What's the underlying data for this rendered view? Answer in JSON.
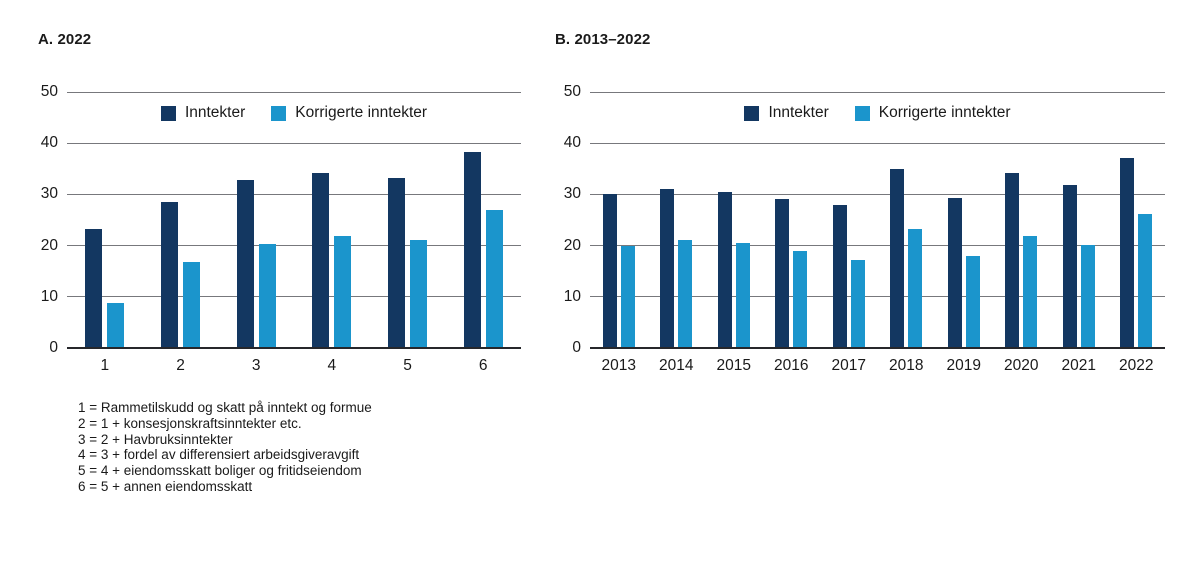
{
  "colors": {
    "inntekter": "#133761",
    "korrigerte_inntekter": "#1b95cc",
    "gridline": "#77787c",
    "baseline": "#26272b",
    "text": "#1a1a1a"
  },
  "chart_data": [
    {
      "type": "bar",
      "title": "A. 2022",
      "categories": [
        "1",
        "2",
        "3",
        "4",
        "5",
        "6"
      ],
      "series": [
        {
          "name": "Inntekter",
          "color_key": "inntekter",
          "values": [
            23.3,
            28.5,
            32.8,
            34.2,
            33.2,
            38.3
          ]
        },
        {
          "name": "Korrigerte inntekter",
          "color_key": "korrigerte_inntekter",
          "values": [
            8.7,
            16.8,
            20.4,
            21.8,
            21.0,
            27.0
          ]
        }
      ],
      "ylim": [
        0,
        50
      ],
      "yticks": [
        0,
        10,
        20,
        30,
        40,
        50
      ],
      "grid": true,
      "legend_position": "top-center-inside",
      "legend": [
        "Inntekter",
        "Korrigerte inntekter"
      ]
    },
    {
      "type": "bar",
      "title": "B. 2013–2022",
      "categories": [
        "2013",
        "2014",
        "2015",
        "2016",
        "2017",
        "2018",
        "2019",
        "2020",
        "2021",
        "2022"
      ],
      "series": [
        {
          "name": "Inntekter",
          "color_key": "inntekter",
          "values": [
            30.0,
            31.0,
            30.5,
            29.2,
            27.9,
            35.0,
            29.3,
            34.2,
            31.9,
            37.2
          ]
        },
        {
          "name": "Korrigerte inntekter",
          "color_key": "korrigerte_inntekter",
          "values": [
            20.0,
            21.0,
            20.5,
            19.0,
            17.1,
            23.3,
            17.9,
            21.9,
            20.2,
            26.2
          ]
        }
      ],
      "ylim": [
        0,
        50
      ],
      "yticks": [
        0,
        10,
        20,
        30,
        40,
        50
      ],
      "grid": true,
      "legend_position": "top-center-inside",
      "legend": [
        "Inntekter",
        "Korrigerte inntekter"
      ]
    }
  ],
  "footnotes": [
    "1 = Rammetilskudd og skatt på inntekt og formue",
    "2 = 1 + konsesjonskraftsinntekter etc.",
    "3 = 2 + Havbruksinntekter",
    "4 = 3 + fordel av differensiert arbeidsgiveravgift",
    "5 = 4 + eiendomsskatt boliger og fritidseiendom",
    "6 = 5 + annen eiendomsskatt"
  ]
}
